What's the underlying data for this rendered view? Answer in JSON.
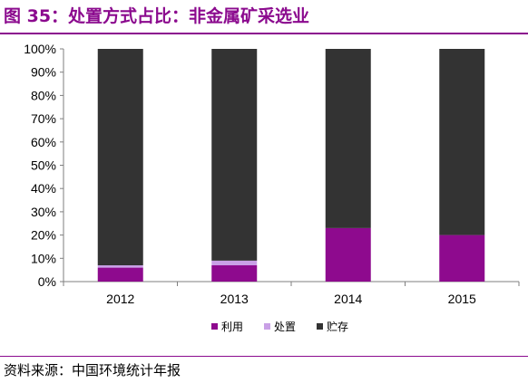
{
  "figure": {
    "title": "图 35：处置方式占比：非金属矿采选业",
    "source": "资料来源：中国环境统计年报"
  },
  "colors": {
    "title": "#8B0A8E",
    "series": [
      "#8E0A8E",
      "#C9A0E6",
      "#333333"
    ]
  },
  "chart_data": {
    "type": "bar",
    "stacked": true,
    "categories": [
      "2012",
      "2013",
      "2014",
      "2015"
    ],
    "series": [
      {
        "name": "利用",
        "values": [
          6,
          7,
          23,
          20
        ]
      },
      {
        "name": "处置",
        "values": [
          1,
          2,
          0,
          0
        ]
      },
      {
        "name": "贮存",
        "values": [
          93,
          91,
          77,
          80
        ]
      }
    ],
    "ylim": [
      0,
      100
    ],
    "yticks": [
      "0%",
      "10%",
      "20%",
      "30%",
      "40%",
      "50%",
      "60%",
      "70%",
      "80%",
      "90%",
      "100%"
    ],
    "xlabel": "",
    "ylabel": "",
    "grid": false,
    "legend": "bottom"
  }
}
